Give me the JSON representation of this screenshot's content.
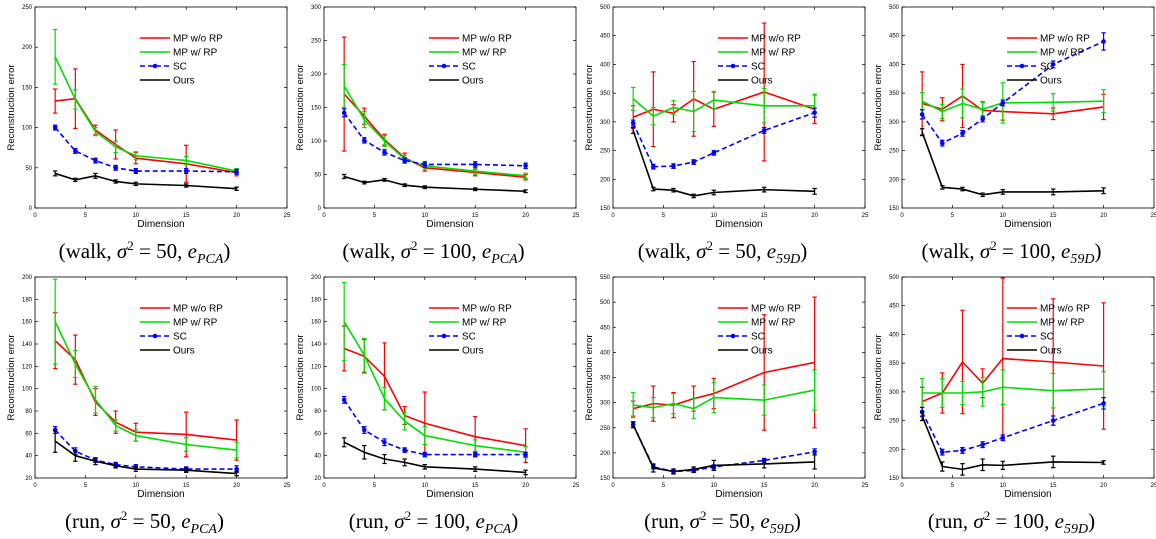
{
  "legend_labels": [
    "MP w/o RP",
    "MP w/ RP",
    "SC",
    "Ours"
  ],
  "colors": {
    "mp_wo_rp": "#ff0000",
    "mp_w_rp": "#00dd00",
    "sc": "#0000ff",
    "ours": "#000000"
  },
  "chart_data": [
    {
      "type": "line",
      "xlabel": "Dimension",
      "ylabel": "Reconstruction error",
      "xlim": [
        0,
        25
      ],
      "ylim": [
        0,
        250
      ],
      "xticks": [
        0,
        5,
        10,
        15,
        20,
        25
      ],
      "yticks": [
        0,
        50,
        100,
        150,
        200,
        250
      ],
      "caption": {
        "a": "walk",
        "b": "50",
        "e": "PCA"
      },
      "x": [
        2,
        4,
        6,
        8,
        10,
        15,
        20
      ],
      "series": [
        {
          "name": "MP w/o RP",
          "values": [
            133,
            136,
            97,
            79,
            62,
            55,
            44
          ],
          "err": [
            15,
            37,
            6,
            18,
            7,
            23,
            4
          ]
        },
        {
          "name": "MP w/ RP",
          "values": [
            188,
            135,
            95,
            76,
            65,
            59,
            46
          ],
          "err": [
            34,
            12,
            5,
            7,
            5,
            5,
            3
          ]
        },
        {
          "name": "SC",
          "values": [
            100,
            71,
            59,
            50,
            46,
            46,
            45
          ],
          "err": [
            3,
            3,
            3,
            3,
            3,
            3,
            3
          ]
        },
        {
          "name": "Ours",
          "values": [
            43,
            35,
            40,
            33,
            30,
            28,
            24
          ],
          "err": [
            3,
            2,
            3,
            2,
            2,
            2,
            2
          ]
        }
      ]
    },
    {
      "type": "line",
      "xlabel": "Dimension",
      "ylabel": "Reconstruction error",
      "xlim": [
        0,
        25
      ],
      "ylim": [
        0,
        300
      ],
      "xticks": [
        0,
        5,
        10,
        15,
        20,
        25
      ],
      "yticks": [
        0,
        50,
        100,
        150,
        200,
        250,
        300
      ],
      "caption": {
        "a": "walk",
        "b": "100",
        "e": "PCA"
      },
      "x": [
        2,
        4,
        6,
        8,
        10,
        15,
        20
      ],
      "series": [
        {
          "name": "MP w/o RP",
          "values": [
            170,
            137,
            102,
            75,
            60,
            53,
            46
          ],
          "err": [
            85,
            12,
            8,
            7,
            5,
            5,
            4
          ]
        },
        {
          "name": "MP w/ RP",
          "values": [
            182,
            132,
            100,
            73,
            63,
            55,
            48
          ],
          "err": [
            32,
            12,
            8,
            5,
            5,
            5,
            4
          ]
        },
        {
          "name": "SC",
          "values": [
            142,
            101,
            83,
            71,
            65,
            65,
            63
          ],
          "err": [
            6,
            4,
            4,
            4,
            4,
            4,
            4
          ]
        },
        {
          "name": "Ours",
          "values": [
            47,
            38,
            42,
            34,
            31,
            28,
            25
          ],
          "err": [
            3,
            2,
            2,
            2,
            2,
            2,
            2
          ]
        }
      ]
    },
    {
      "type": "line",
      "xlabel": "Dimension",
      "ylabel": "Reconstruction error",
      "xlim": [
        0,
        25
      ],
      "ylim": [
        150,
        500
      ],
      "xticks": [
        0,
        5,
        10,
        15,
        20,
        25
      ],
      "yticks": [
        150,
        200,
        250,
        300,
        350,
        400,
        450,
        500
      ],
      "caption": {
        "a": "walk",
        "b": "50",
        "e": "59D"
      },
      "x": [
        2,
        4,
        6,
        8,
        10,
        15,
        20
      ],
      "series": [
        {
          "name": "MP w/o RP",
          "values": [
            308,
            322,
            315,
            340,
            322,
            352,
            322
          ],
          "err": [
            20,
            65,
            15,
            65,
            30,
            120,
            25
          ]
        },
        {
          "name": "MP w/ RP",
          "values": [
            340,
            310,
            325,
            318,
            338,
            328,
            328
          ],
          "err": [
            20,
            15,
            12,
            35,
            15,
            30,
            20
          ]
        },
        {
          "name": "SC",
          "values": [
            298,
            222,
            223,
            230,
            246,
            285,
            316
          ],
          "err": [
            5,
            4,
            4,
            4,
            4,
            5,
            8
          ]
        },
        {
          "name": "Ours",
          "values": [
            285,
            183,
            181,
            171,
            177,
            182,
            179
          ],
          "err": [
            5,
            3,
            3,
            3,
            4,
            4,
            5
          ]
        }
      ]
    },
    {
      "type": "line",
      "xlabel": "Dimension",
      "ylabel": "Reconstruction error",
      "xlim": [
        0,
        25
      ],
      "ylim": [
        150,
        500
      ],
      "xticks": [
        0,
        5,
        10,
        15,
        20,
        25
      ],
      "yticks": [
        150,
        200,
        250,
        300,
        350,
        400,
        450,
        500
      ],
      "caption": {
        "a": "walk",
        "b": "100",
        "e": "59D"
      },
      "x": [
        2,
        4,
        6,
        8,
        10,
        15,
        20
      ],
      "series": [
        {
          "name": "MP w/o RP",
          "values": [
            332,
            322,
            345,
            320,
            318,
            314,
            326
          ],
          "err": [
            55,
            20,
            55,
            15,
            15,
            10,
            22
          ]
        },
        {
          "name": "MP w/ RP",
          "values": [
            336,
            318,
            332,
            322,
            333,
            334,
            336
          ],
          "err": [
            15,
            12,
            25,
            12,
            35,
            15,
            20
          ]
        },
        {
          "name": "SC",
          "values": [
            313,
            263,
            280,
            305,
            333,
            400,
            440
          ],
          "err": [
            8,
            5,
            5,
            5,
            5,
            6,
            15
          ]
        },
        {
          "name": "Ours",
          "values": [
            282,
            186,
            183,
            173,
            178,
            178,
            180
          ],
          "err": [
            6,
            3,
            3,
            3,
            4,
            5,
            5
          ]
        }
      ]
    },
    {
      "type": "line",
      "xlabel": "Dimension",
      "ylabel": "Reconstruction error",
      "xlim": [
        0,
        25
      ],
      "ylim": [
        20,
        200
      ],
      "xticks": [
        0,
        5,
        10,
        15,
        20,
        25
      ],
      "yticks": [
        20,
        40,
        60,
        80,
        100,
        120,
        140,
        160,
        180,
        200
      ],
      "caption": {
        "a": "run",
        "b": "50",
        "e": "PCA"
      },
      "x": [
        2,
        4,
        6,
        8,
        10,
        15,
        20
      ],
      "series": [
        {
          "name": "MP w/o RP",
          "values": [
            143,
            126,
            88,
            70,
            61,
            59,
            54
          ],
          "err": [
            25,
            22,
            12,
            10,
            8,
            20,
            18
          ]
        },
        {
          "name": "MP w/ RP",
          "values": [
            160,
            122,
            90,
            67,
            58,
            50,
            45
          ],
          "err": [
            38,
            12,
            12,
            5,
            5,
            6,
            7
          ]
        },
        {
          "name": "SC",
          "values": [
            63,
            44,
            36,
            32,
            30,
            28,
            28
          ],
          "err": [
            3,
            3,
            2,
            2,
            2,
            2,
            3
          ]
        },
        {
          "name": "Ours",
          "values": [
            53,
            40,
            35,
            31,
            28,
            27,
            24
          ],
          "err": [
            10,
            5,
            3,
            2,
            2,
            2,
            2
          ]
        }
      ]
    },
    {
      "type": "line",
      "xlabel": "Dimension",
      "ylabel": "Reconstruction error",
      "xlim": [
        0,
        25
      ],
      "ylim": [
        20,
        200
      ],
      "xticks": [
        0,
        5,
        10,
        15,
        20,
        25
      ],
      "yticks": [
        20,
        40,
        60,
        80,
        100,
        120,
        140,
        160,
        180,
        200
      ],
      "caption": {
        "a": "run",
        "b": "100",
        "e": "PCA"
      },
      "x": [
        2,
        4,
        6,
        8,
        10,
        15,
        20
      ],
      "series": [
        {
          "name": "MP w/o RP",
          "values": [
            136,
            129,
            111,
            76,
            69,
            57,
            49
          ],
          "err": [
            20,
            15,
            30,
            8,
            28,
            18,
            15
          ]
        },
        {
          "name": "MP w/ RP",
          "values": [
            160,
            130,
            91,
            71,
            58,
            49,
            43
          ],
          "err": [
            35,
            15,
            10,
            8,
            8,
            5,
            5
          ]
        },
        {
          "name": "SC",
          "values": [
            90,
            63,
            52,
            45,
            41,
            41,
            41
          ],
          "err": [
            3,
            3,
            3,
            2,
            2,
            2,
            2
          ]
        },
        {
          "name": "Ours",
          "values": [
            52,
            43,
            37,
            34,
            30,
            28,
            25
          ],
          "err": [
            4,
            6,
            4,
            3,
            2,
            2,
            2
          ]
        }
      ]
    },
    {
      "type": "line",
      "xlabel": "Dimension",
      "ylabel": "Reconstruction error",
      "xlim": [
        0,
        25
      ],
      "ylim": [
        150,
        550
      ],
      "xticks": [
        0,
        5,
        10,
        15,
        20,
        25
      ],
      "yticks": [
        150,
        200,
        250,
        300,
        350,
        400,
        450,
        500,
        550
      ],
      "caption": {
        "a": "run",
        "b": "50",
        "e": "59D"
      },
      "x": [
        2,
        4,
        6,
        8,
        10,
        15,
        20
      ],
      "series": [
        {
          "name": "MP w/o RP",
          "values": [
            288,
            298,
            295,
            308,
            318,
            360,
            380
          ],
          "err": [
            15,
            35,
            25,
            25,
            30,
            115,
            130
          ]
        },
        {
          "name": "MP w/ RP",
          "values": [
            295,
            290,
            298,
            288,
            310,
            305,
            325
          ],
          "err": [
            25,
            20,
            20,
            20,
            30,
            30,
            40
          ]
        },
        {
          "name": "SC",
          "values": [
            256,
            172,
            163,
            165,
            172,
            185,
            202
          ],
          "err": [
            5,
            4,
            4,
            4,
            4,
            4,
            6
          ]
        },
        {
          "name": "Ours",
          "values": [
            256,
            170,
            163,
            167,
            175,
            178,
            182
          ],
          "err": [
            6,
            8,
            5,
            5,
            10,
            8,
            14
          ]
        }
      ]
    },
    {
      "type": "line",
      "xlabel": "Dimension",
      "ylabel": "Reconstruction error",
      "xlim": [
        0,
        25
      ],
      "ylim": [
        150,
        500
      ],
      "xticks": [
        0,
        5,
        10,
        15,
        20,
        25
      ],
      "yticks": [
        150,
        200,
        250,
        300,
        350,
        400,
        450,
        500
      ],
      "caption": {
        "a": "run",
        "b": "100",
        "e": "59D"
      },
      "x": [
        2,
        4,
        6,
        8,
        10,
        15,
        20
      ],
      "series": [
        {
          "name": "MP w/o RP",
          "values": [
            283,
            298,
            352,
            315,
            358,
            352,
            345
          ],
          "err": [
            25,
            35,
            90,
            25,
            140,
            110,
            110
          ]
        },
        {
          "name": "MP w/ RP",
          "values": [
            298,
            298,
            298,
            300,
            308,
            302,
            305
          ],
          "err": [
            25,
            25,
            20,
            25,
            30,
            30,
            30
          ]
        },
        {
          "name": "SC",
          "values": [
            265,
            195,
            198,
            208,
            220,
            250,
            280
          ],
          "err": [
            8,
            5,
            5,
            5,
            5,
            8,
            10
          ]
        },
        {
          "name": "Ours",
          "values": [
            258,
            170,
            165,
            173,
            172,
            178,
            177
          ],
          "err": [
            8,
            8,
            10,
            10,
            7,
            10,
            3
          ]
        }
      ]
    }
  ]
}
